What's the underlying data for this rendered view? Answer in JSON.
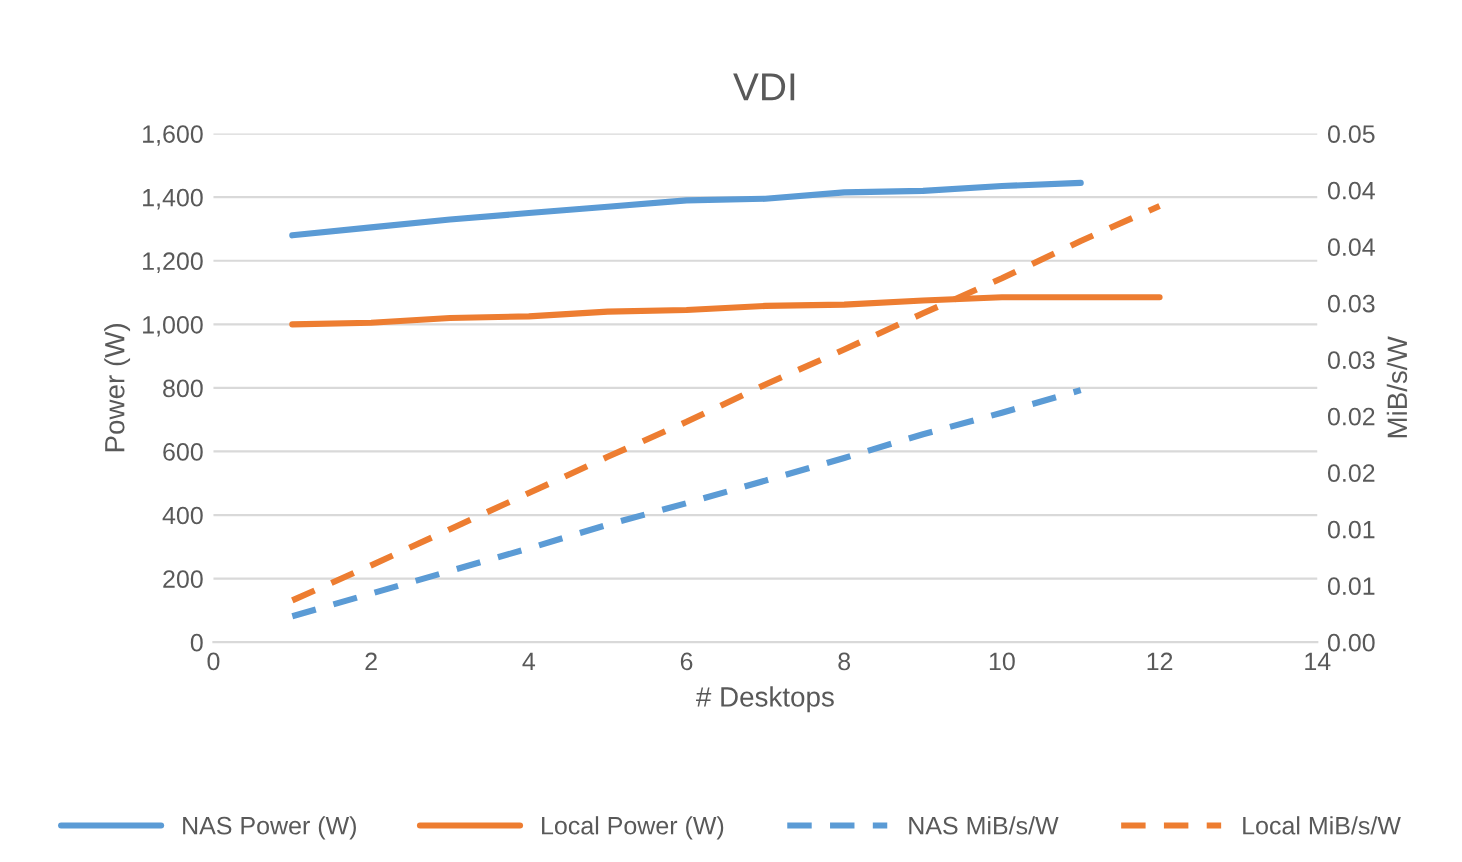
{
  "chart_data": {
    "type": "line",
    "title": "VDI",
    "xlabel": "# Desktops",
    "ylabel": "Power (W)",
    "y2label": "MiB/s/W",
    "xlim": [
      0,
      14
    ],
    "xticks": [
      0,
      2,
      4,
      6,
      8,
      10,
      12,
      14
    ],
    "ylim": [
      0,
      1600
    ],
    "yticks": [
      {
        "value": 0,
        "label": "0"
      },
      {
        "value": 200,
        "label": "200"
      },
      {
        "value": 400,
        "label": "400"
      },
      {
        "value": 600,
        "label": "600"
      },
      {
        "value": 800,
        "label": "800"
      },
      {
        "value": 1000,
        "label": "1,000"
      },
      {
        "value": 1200,
        "label": "1,200"
      },
      {
        "value": 1400,
        "label": "1,400"
      },
      {
        "value": 1600,
        "label": "1,600"
      }
    ],
    "y2lim": [
      0,
      0.045
    ],
    "y2ticks": [
      {
        "value": 0,
        "label": "0.00"
      },
      {
        "value": 0.005,
        "label": "0.01"
      },
      {
        "value": 0.01,
        "label": "0.01"
      },
      {
        "value": 0.015,
        "label": "0.02"
      },
      {
        "value": 0.02,
        "label": "0.02"
      },
      {
        "value": 0.025,
        "label": "0.03"
      },
      {
        "value": 0.03,
        "label": "0.03"
      },
      {
        "value": 0.035,
        "label": "0.04"
      },
      {
        "value": 0.04,
        "label": "0.04"
      },
      {
        "value": 0.045,
        "label": "0.05"
      }
    ],
    "grid": "y",
    "legend": "bottom",
    "marker": "none",
    "series": [
      {
        "name": "NAS Power (W)",
        "color": "#5b9bd5",
        "line_style": "solid",
        "x": [
          1,
          2,
          3,
          4,
          5,
          6,
          7,
          8,
          9,
          10,
          11
        ],
        "values": [
          1280,
          1305,
          1330,
          1350,
          1370,
          1390,
          1395,
          1415,
          1420,
          1435,
          1445
        ]
      },
      {
        "name": "Local Power (W)",
        "color": "#ed7d31",
        "line_style": "solid",
        "x": [
          1,
          2,
          3,
          4,
          5,
          6,
          7,
          8,
          9,
          10,
          11,
          12
        ],
        "values": [
          1000,
          1005,
          1020,
          1025,
          1040,
          1045,
          1058,
          1062,
          1075,
          1085,
          1085,
          1085
        ]
      },
      {
        "name": "NAS MiB/s/W",
        "color": "#5b9bd5",
        "line_style": "dashed",
        "axis": "y2",
        "x": [
          1,
          2,
          3,
          4,
          5,
          6,
          7,
          8,
          9,
          10,
          11
        ],
        "values": [
          0.0023,
          0.0043,
          0.0063,
          0.0083,
          0.0104,
          0.0123,
          0.0143,
          0.0163,
          0.0184,
          0.0203,
          0.0223
        ]
      },
      {
        "name": "Local MiB/s/W",
        "color": "#ed7d31",
        "line_style": "dashed",
        "axis": "y2",
        "x": [
          1,
          2,
          3,
          4,
          5,
          6,
          7,
          8,
          9,
          10,
          11,
          12
        ],
        "values": [
          0.0037,
          0.0068,
          0.01,
          0.0132,
          0.0164,
          0.0195,
          0.0228,
          0.0259,
          0.0291,
          0.0322,
          0.0355,
          0.0386
        ]
      }
    ]
  }
}
